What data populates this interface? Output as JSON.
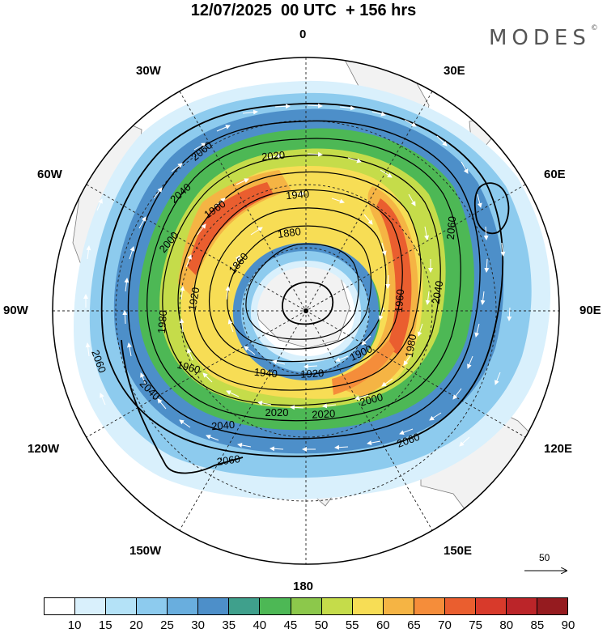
{
  "title": "12/07/2025  00 UTC  + 156 hrs",
  "brand": {
    "name": "MODES",
    "mark": "©"
  },
  "longitude_labels": [
    "0",
    "30E",
    "60E",
    "90E",
    "120E",
    "150E",
    "180",
    "150W",
    "120W",
    "90W",
    "60W",
    "30W"
  ],
  "contour_labels": [
    "2060",
    "2020",
    "1940",
    "1960",
    "2040",
    "2000",
    "1880",
    "1860",
    "1920",
    "1980",
    "2060",
    "2040",
    "1960",
    "1900",
    "1980",
    "2040",
    "2060",
    "2040",
    "2060",
    "1960",
    "1940",
    "1920",
    "2000",
    "2020",
    "2020",
    "2060"
  ],
  "colorbar": {
    "labels": [
      "10",
      "15",
      "20",
      "25",
      "30",
      "35",
      "40",
      "45",
      "50",
      "55",
      "60",
      "65",
      "70",
      "75",
      "80",
      "85",
      "90"
    ],
    "colors": [
      "#ffffff",
      "#d9f0fc",
      "#b4e2f7",
      "#8dcbee",
      "#69aede",
      "#4d8fc9",
      "#3fa08c",
      "#4db855",
      "#8cc84b",
      "#c5dc4a",
      "#f7dd55",
      "#f5b444",
      "#f58d3a",
      "#ea5e2f",
      "#d83a2b",
      "#bb2529",
      "#951b1f"
    ]
  },
  "reference_vector": {
    "value": "50"
  }
}
